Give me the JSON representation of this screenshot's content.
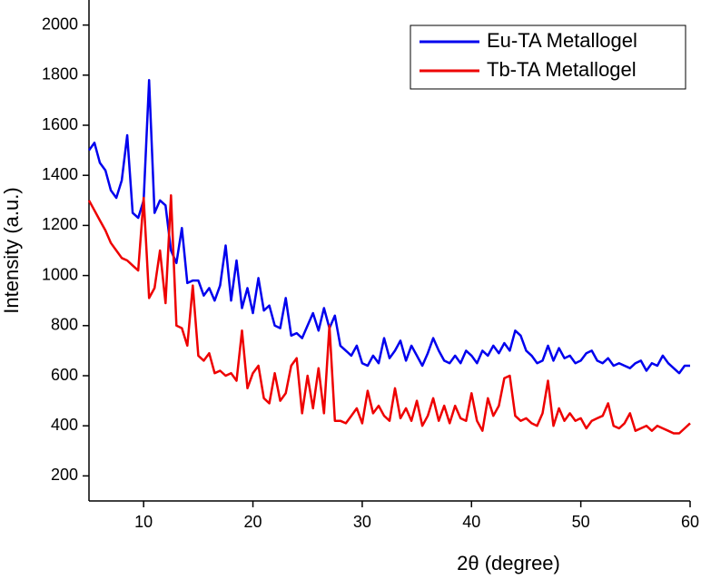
{
  "chart_data": {
    "type": "line",
    "xlabel": "2θ (degree)",
    "ylabel": "Intensity (a.u.)",
    "xlim": [
      5,
      60
    ],
    "ylim": [
      100,
      2100
    ],
    "xticks": [
      10,
      20,
      30,
      40,
      50,
      60
    ],
    "yticks": [
      200,
      400,
      600,
      800,
      1000,
      1200,
      1400,
      1600,
      1800,
      2000
    ],
    "legend": "upper right",
    "grid": false,
    "x": [
      5,
      5.5,
      6,
      6.5,
      7,
      7.5,
      8,
      8.5,
      9,
      9.5,
      10,
      10.5,
      11,
      11.5,
      12,
      12.5,
      13,
      13.5,
      14,
      14.5,
      15,
      15.5,
      16,
      16.5,
      17,
      17.5,
      18,
      18.5,
      19,
      19.5,
      20,
      20.5,
      21,
      21.5,
      22,
      22.5,
      23,
      23.5,
      24,
      24.5,
      25,
      25.5,
      26,
      26.5,
      27,
      27.5,
      28,
      28.5,
      29,
      29.5,
      30,
      30.5,
      31,
      31.5,
      32,
      32.5,
      33,
      33.5,
      34,
      34.5,
      35,
      35.5,
      36,
      36.5,
      37,
      37.5,
      38,
      38.5,
      39,
      39.5,
      40,
      40.5,
      41,
      41.5,
      42,
      42.5,
      43,
      43.5,
      44,
      44.5,
      45,
      45.5,
      46,
      46.5,
      47,
      47.5,
      48,
      48.5,
      49,
      49.5,
      50,
      50.5,
      51,
      51.5,
      52,
      52.5,
      53,
      53.5,
      54,
      54.5,
      55,
      55.5,
      56,
      56.5,
      57,
      57.5,
      58,
      58.5,
      59,
      59.5,
      60
    ],
    "series": [
      {
        "name": "Eu-TA Metallogel",
        "color": "#0000ee",
        "values": [
          1500,
          1530,
          1450,
          1420,
          1340,
          1310,
          1380,
          1560,
          1250,
          1230,
          1300,
          1780,
          1250,
          1300,
          1280,
          1100,
          1050,
          1190,
          970,
          980,
          980,
          920,
          950,
          900,
          960,
          1120,
          900,
          1060,
          870,
          950,
          850,
          990,
          860,
          880,
          800,
          790,
          910,
          760,
          770,
          750,
          800,
          850,
          780,
          870,
          790,
          840,
          720,
          700,
          680,
          720,
          650,
          640,
          680,
          650,
          750,
          670,
          700,
          740,
          660,
          720,
          680,
          640,
          690,
          750,
          700,
          660,
          650,
          680,
          650,
          700,
          680,
          650,
          700,
          680,
          720,
          690,
          730,
          700,
          780,
          760,
          700,
          680,
          650,
          660,
          720,
          660,
          710,
          670,
          680,
          650,
          660,
          690,
          700,
          660,
          650,
          670,
          640,
          650,
          640,
          630,
          650,
          660,
          620,
          650,
          640,
          680,
          650,
          630,
          610,
          640,
          640
        ]
      },
      {
        "name": "Tb-TA Metallogel",
        "color": "#ee0000",
        "values": [
          1300,
          1260,
          1220,
          1180,
          1130,
          1100,
          1070,
          1060,
          1040,
          1020,
          1310,
          910,
          950,
          1100,
          890,
          1320,
          800,
          790,
          720,
          960,
          680,
          660,
          690,
          610,
          620,
          600,
          610,
          580,
          780,
          550,
          610,
          640,
          510,
          490,
          610,
          500,
          530,
          640,
          670,
          450,
          600,
          470,
          630,
          450,
          800,
          420,
          420,
          410,
          440,
          470,
          410,
          540,
          450,
          480,
          440,
          420,
          550,
          430,
          470,
          420,
          500,
          400,
          440,
          510,
          420,
          480,
          410,
          480,
          430,
          420,
          530,
          420,
          380,
          510,
          440,
          480,
          590,
          600,
          440,
          420,
          430,
          410,
          400,
          450,
          580,
          400,
          470,
          420,
          450,
          420,
          430,
          390,
          420,
          430,
          440,
          490,
          400,
          390,
          410,
          450,
          380,
          390,
          400,
          380,
          400,
          390,
          380,
          370,
          370,
          390,
          410
        ]
      }
    ]
  }
}
